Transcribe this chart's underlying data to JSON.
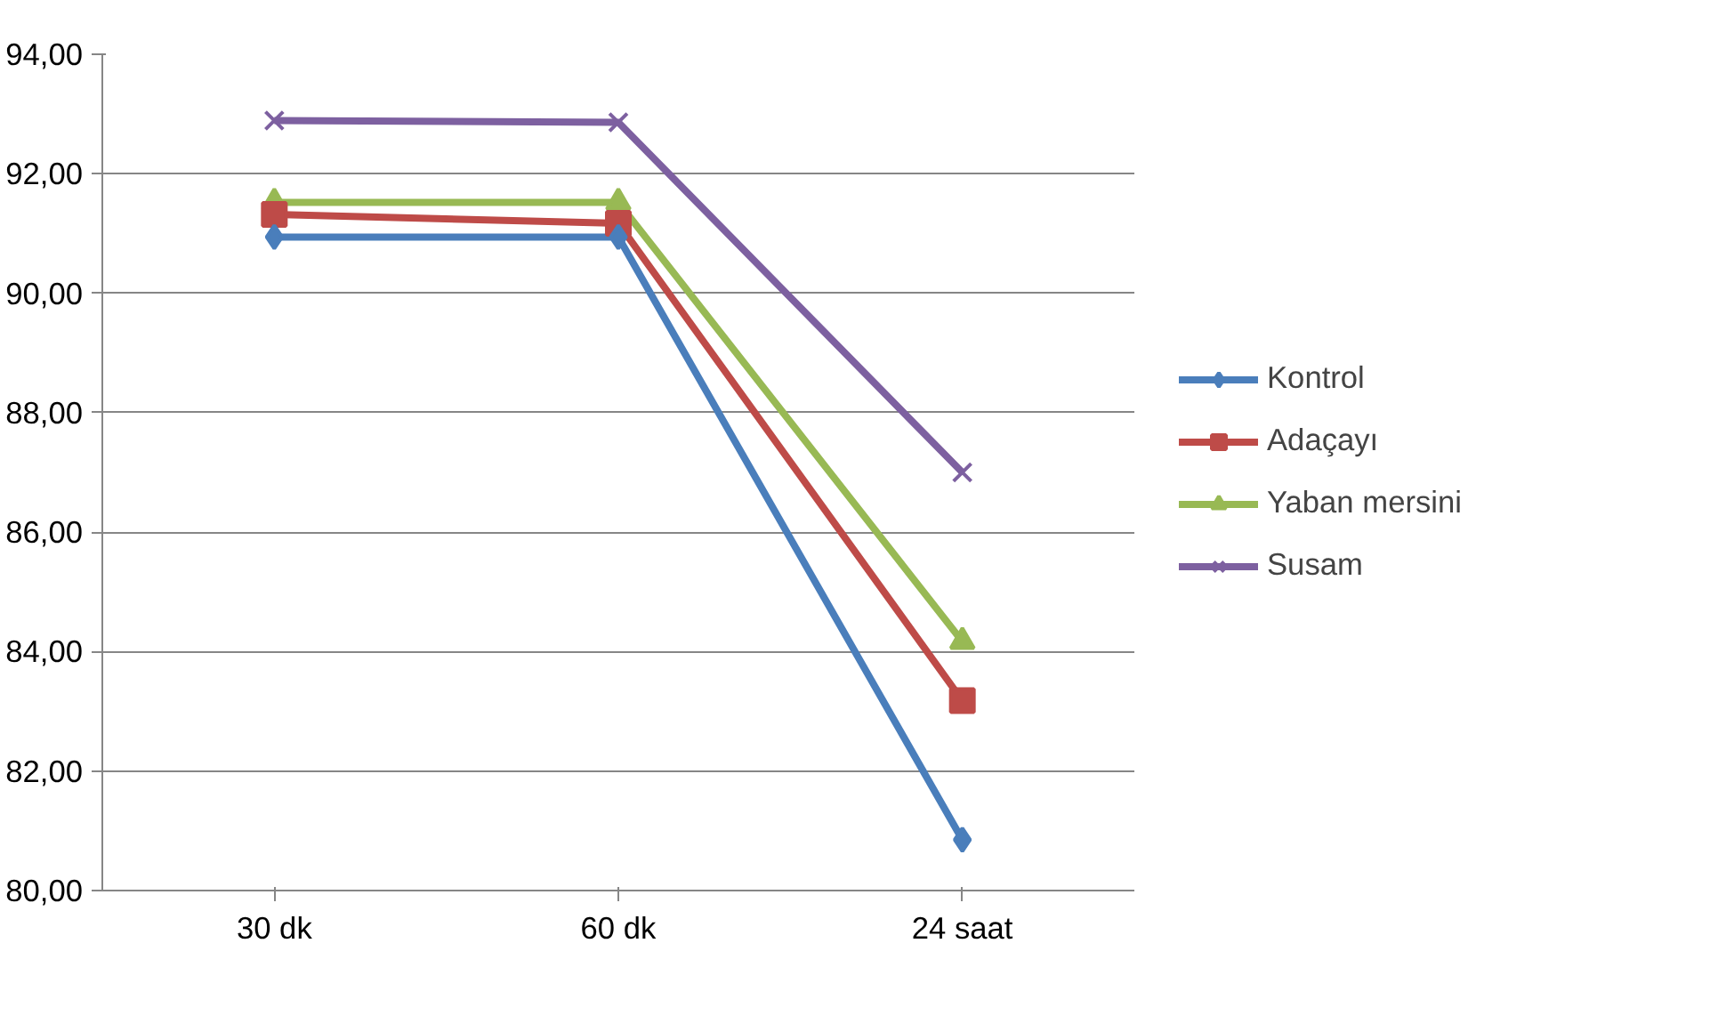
{
  "chart_data": {
    "type": "line",
    "categories": [
      "30 dk",
      "60 dk",
      "24 saat"
    ],
    "series": [
      {
        "name": "Kontrol",
        "color": "#4a7ebb",
        "marker": "diamond",
        "values": [
          90.94,
          90.94,
          80.85
        ]
      },
      {
        "name": "Adaçayı",
        "color": "#be4b48",
        "marker": "square",
        "values": [
          91.32,
          91.17,
          83.18
        ]
      },
      {
        "name": "Yaban mersini",
        "color": "#98b954",
        "marker": "triangle",
        "values": [
          91.52,
          91.52,
          84.17
        ]
      },
      {
        "name": "Susam",
        "color": "#7d60a0",
        "marker": "cross",
        "values": [
          92.89,
          92.86,
          87.0
        ]
      }
    ],
    "ylim": [
      80,
      94
    ],
    "yticks": [
      {
        "value": 80,
        "label": "80,00"
      },
      {
        "value": 82,
        "label": "82,00"
      },
      {
        "value": 84,
        "label": "84,00"
      },
      {
        "value": 86,
        "label": "86,00"
      },
      {
        "value": 88,
        "label": "88,00"
      },
      {
        "value": 90,
        "label": "90,00"
      },
      {
        "value": 92,
        "label": "92,00"
      },
      {
        "value": 94,
        "label": "94,00"
      }
    ],
    "grid": "y",
    "legend": "right",
    "line_style": "solid"
  }
}
